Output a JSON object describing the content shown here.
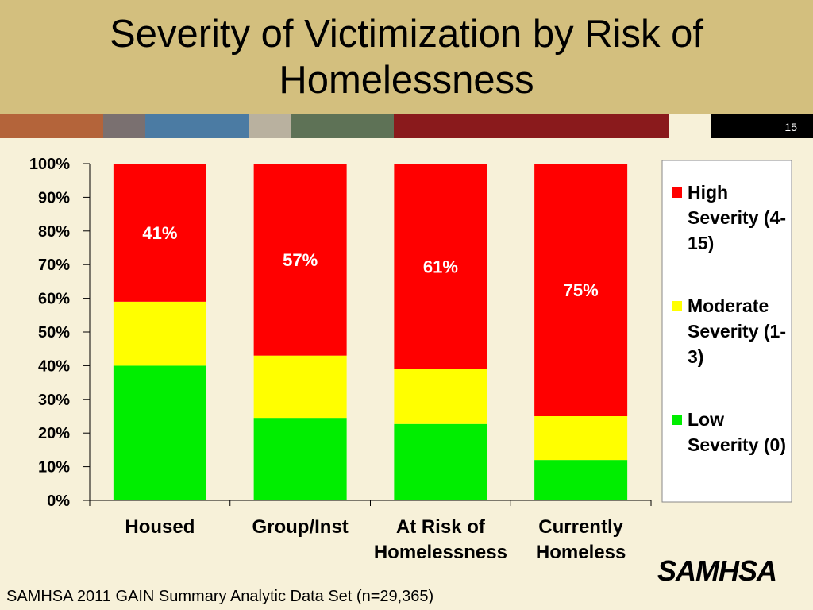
{
  "chart_data": {
    "type": "stacked_bar",
    "title": "Severity of Victimization by Risk of Homelessness",
    "page_number": "15",
    "categories": [
      "Housed",
      "Group/Inst",
      "At Risk of Homelessness",
      "Currently Homeless"
    ],
    "series": [
      {
        "name": "Low Severity (0)",
        "color": "#00ee00",
        "values": [
          40,
          24.5,
          22.7,
          12
        ]
      },
      {
        "name": "Moderate Severity (1-3)",
        "color": "#ffff00",
        "values": [
          19,
          18.5,
          16.3,
          13
        ]
      },
      {
        "name": "High Severity (4-15)",
        "color": "#ff0000",
        "values": [
          41,
          57,
          61,
          75
        ],
        "value_labels": [
          "41%",
          "57%",
          "61%",
          "75%"
        ]
      }
    ],
    "ylim": [
      0,
      100
    ],
    "yticks": [
      {
        "value": 0,
        "label": "0%"
      },
      {
        "value": 10,
        "label": "10%"
      },
      {
        "value": 20,
        "label": "20%"
      },
      {
        "value": 30,
        "label": "30%"
      },
      {
        "value": 40,
        "label": "40%"
      },
      {
        "value": 50,
        "label": "50%"
      },
      {
        "value": 60,
        "label": "60%"
      },
      {
        "value": 70,
        "label": "70%"
      },
      {
        "value": 80,
        "label": "80%"
      },
      {
        "value": 90,
        "label": "90%"
      },
      {
        "value": 100,
        "label": "100%"
      }
    ],
    "legend": "right",
    "footnote": "SAMHSA 2011 GAIN Summary Analytic Data Set (n=29,365)",
    "logo": "SAMHSA"
  }
}
